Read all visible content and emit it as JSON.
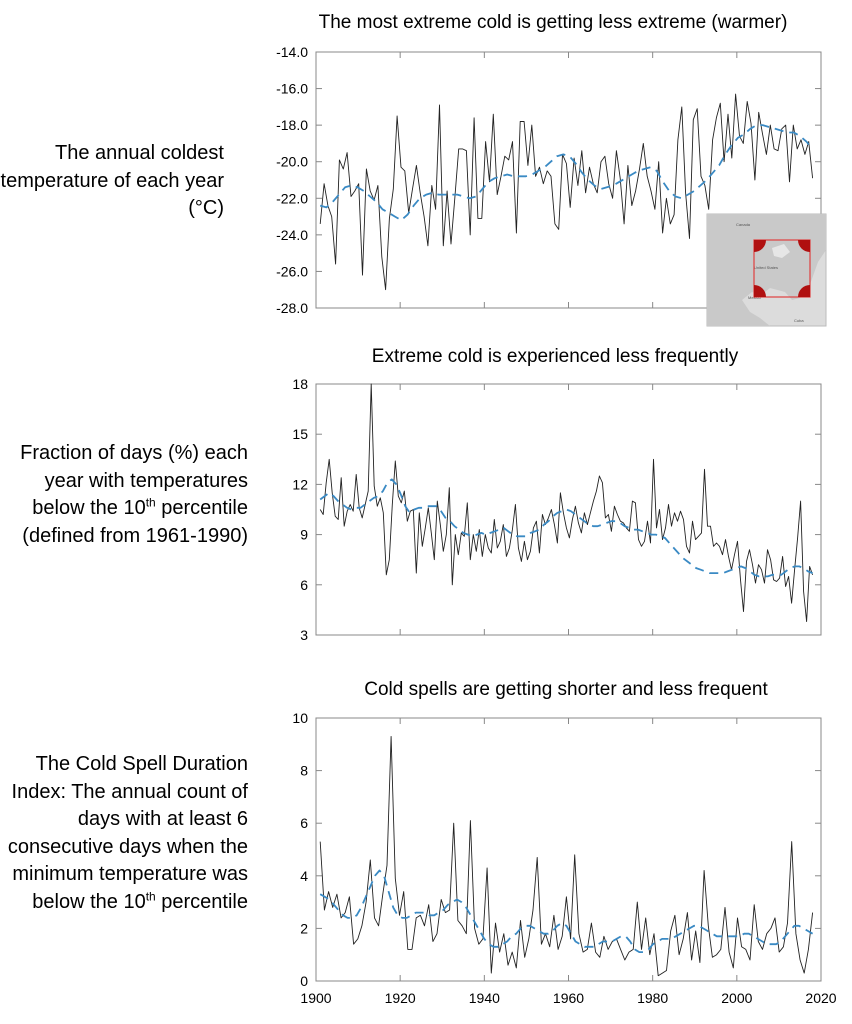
{
  "chart_data": [
    {
      "type": "line",
      "title": "The most extreme cold is getting less extreme (warmer)",
      "ylabel": "The annual coldest temperature of each year (°C)",
      "yticks": [
        "-14.0",
        "-16.0",
        "-18.0",
        "-20.0",
        "-22.0",
        "-24.0",
        "-26.0",
        "-28.0"
      ],
      "ylim": [
        -28,
        -14
      ],
      "xlim": [
        1900,
        2020
      ],
      "grid": false,
      "series": [
        {
          "style": "black-solid",
          "values": [
            -23.4,
            -21.2,
            -22.4,
            -23.0,
            -25.6,
            -19.9,
            -20.4,
            -19.5,
            -21.9,
            -21.6,
            -21.2,
            -26.2,
            -20.4,
            -21.6,
            -22.1,
            -21.3,
            -25.2,
            -27.0,
            -23.1,
            -21.5,
            -17.5,
            -20.3,
            -20.5,
            -22.8,
            -21.5,
            -20.2,
            -21.7,
            -23.0,
            -24.6,
            -21.3,
            -22.6,
            -16.9,
            -24.6,
            -21.6,
            -24.5,
            -22.0,
            -19.3,
            -19.3,
            -19.4,
            -24.0,
            -17.6,
            -23.1,
            -23.1,
            -18.9,
            -21.1,
            -17.4,
            -21.8,
            -20.8,
            -19.7,
            -19.9,
            -18.9,
            -23.9,
            -17.8,
            -17.8,
            -20.2,
            -18.0,
            -20.8,
            -20.3,
            -21.2,
            -20.5,
            -20.8,
            -23.4,
            -23.7,
            -19.6,
            -20.1,
            -22.5,
            -19.8,
            -21.3,
            -19.4,
            -21.7,
            -20.3,
            -21.2,
            -21.7,
            -20.0,
            -19.7,
            -21.2,
            -22.0,
            -19.4,
            -20.9,
            -23.4,
            -20.2,
            -22.4,
            -21.6,
            -20.4,
            -19.0,
            -20.8,
            -21.6,
            -22.6,
            -20.0,
            -23.9,
            -22.0,
            -23.4,
            -22.9,
            -18.8,
            -17.0,
            -21.7,
            -24.2,
            -17.7,
            -17.1,
            -20.8,
            -21.3,
            -22.6,
            -18.8,
            -17.6,
            -16.8,
            -20.0,
            -17.4,
            -19.8,
            -16.3,
            -18.6,
            -19.0,
            -16.7,
            -17.9,
            -21.0,
            -17.3,
            -18.5,
            -19.6,
            -18.0,
            -19.3,
            -19.4,
            -18.2,
            -18.0,
            -21.1,
            -18.0,
            -19.3,
            -18.8,
            -19.6,
            -18.9,
            -20.9
          ]
        },
        {
          "style": "blue-dashed",
          "values": [
            -22.4,
            -22.5,
            -22.2,
            -21.8,
            -21.4,
            -21.3,
            -21.4,
            -21.6,
            -21.9,
            -22.2,
            -22.6,
            -22.8,
            -23.0,
            -23.2,
            -22.9,
            -22.4,
            -22.0,
            -21.8,
            -21.7,
            -21.8,
            -21.8,
            -21.8,
            -21.8,
            -21.9,
            -22.0,
            -21.9,
            -21.5,
            -21.1,
            -20.9,
            -20.8,
            -20.7,
            -20.8,
            -20.8,
            -20.8,
            -20.7,
            -20.5,
            -20.3,
            -20.0,
            -19.7,
            -19.6,
            -19.7,
            -20.1,
            -20.6,
            -21.0,
            -21.3,
            -21.5,
            -21.4,
            -21.3,
            -21.1,
            -20.9,
            -20.7,
            -20.5,
            -20.4,
            -20.3,
            -20.5,
            -21.1,
            -21.6,
            -21.9,
            -22.0,
            -21.8,
            -21.6,
            -21.3,
            -21.0,
            -20.6,
            -20.2,
            -19.6,
            -19.1,
            -18.7,
            -18.5,
            -18.2,
            -18.0,
            -18.0,
            -18.1,
            -18.2,
            -18.3,
            -18.4,
            -18.4,
            -18.6,
            -18.9,
            -19.3
          ]
        }
      ]
    },
    {
      "type": "line",
      "title": "Extreme cold is experienced less frequently",
      "ylabel": "Fraction of days (%) each year with temperatures below the 10th percentile (defined from 1961-1990)",
      "yticks": [
        "18",
        "15",
        "12",
        "9",
        "6",
        "3"
      ],
      "ylim": [
        3,
        18
      ],
      "xlim": [
        1900,
        2020
      ],
      "grid": false,
      "series": [
        {
          "style": "black-solid",
          "values": [
            10.5,
            10.2,
            12.1,
            13.5,
            11.5,
            10.1,
            9.9,
            12.4,
            9.5,
            10.4,
            10.8,
            10.4,
            12.6,
            10.6,
            10.0,
            10.8,
            11.6,
            18.0,
            11.9,
            10.7,
            11.2,
            10.3,
            6.6,
            7.5,
            10.8,
            13.4,
            11.3,
            10.9,
            11.6,
            9.8,
            10.4,
            10.5,
            6.7,
            10.3,
            8.3,
            9.4,
            10.6,
            9.1,
            7.5,
            11.0,
            9.6,
            8.0,
            9.0,
            11.8,
            6.0,
            9.0,
            7.8,
            9.1,
            8.9,
            10.9,
            7.5,
            9.0,
            8.0,
            9.3,
            7.7,
            9.0,
            8.2,
            7.9,
            9.9,
            8.2,
            8.6,
            9.6,
            7.7,
            8.2,
            9.3,
            10.8,
            8.2,
            7.4,
            8.6,
            7.5,
            8.0,
            9.4,
            9.8,
            7.9,
            10.2,
            9.6,
            10.0,
            10.5,
            9.6,
            8.5,
            11.5,
            10.3,
            9.4,
            8.8,
            9.9,
            10.7,
            9.7,
            9.1,
            10.3,
            9.6,
            10.3,
            11.0,
            11.6,
            12.5,
            12.1,
            10.0,
            10.2,
            9.2,
            10.7,
            10.2,
            9.8,
            9.7,
            9.4,
            9.2,
            11.0,
            10.9,
            8.7,
            8.3,
            8.6,
            9.8,
            8.5,
            13.5,
            9.4,
            10.5,
            8.7,
            9.4,
            10.8,
            9.5,
            10.3,
            9.8,
            10.4,
            9.9,
            8.3,
            7.9,
            9.8,
            8.7,
            8.9,
            9.1,
            12.9,
            9.5,
            9.5,
            8.3,
            8.5,
            8.3,
            7.8,
            8.7,
            7.7,
            6.9,
            7.8,
            8.6,
            6.3,
            4.4,
            7.4,
            8.1,
            7.2,
            6.1,
            7.2,
            6.9,
            6.1,
            8.1,
            7.5,
            6.3,
            6.2,
            6.4,
            7.7,
            5.9,
            6.5,
            4.9,
            6.9,
            8.8,
            11.0,
            5.6,
            3.8,
            7.1,
            6.6
          ]
        },
        {
          "style": "blue-dashed",
          "values": [
            11.1,
            11.3,
            11.5,
            11.3,
            11.0,
            10.8,
            10.6,
            10.5,
            10.6,
            10.6,
            10.8,
            11.0,
            11.2,
            11.3,
            11.6,
            12.1,
            12.3,
            12.0,
            11.4,
            10.7,
            10.3,
            10.5,
            10.6,
            10.6,
            10.7,
            10.7,
            10.7,
            10.4,
            10.0,
            9.8,
            9.5,
            9.3,
            9.1,
            9.0,
            8.9,
            9.0,
            9.1,
            9.0,
            9.1,
            9.2,
            9.3,
            9.4,
            9.2,
            9.0,
            8.9,
            8.9,
            8.9,
            9.1,
            9.2,
            9.3,
            9.6,
            9.8,
            10.1,
            10.3,
            10.4,
            10.5,
            10.4,
            10.2,
            10.0,
            9.8,
            9.6,
            9.5,
            9.5,
            9.6,
            9.7,
            9.8,
            9.8,
            9.7,
            9.5,
            9.4,
            9.3,
            9.3,
            9.2,
            9.1,
            9.0,
            9.0,
            8.9,
            8.8,
            8.5,
            8.2,
            7.9,
            7.6,
            7.4,
            7.2,
            7.0,
            6.9,
            6.8,
            6.7,
            6.7,
            6.7,
            6.7,
            6.8,
            6.9,
            7.0,
            7.1,
            7.0,
            6.8,
            6.6,
            6.5,
            6.5,
            6.5,
            6.6,
            6.6,
            6.6,
            6.8,
            7.0,
            7.1,
            7.1,
            7.0,
            6.8,
            6.7
          ]
        }
      ]
    },
    {
      "type": "line",
      "title": "Cold spells are getting shorter and less frequent",
      "ylabel": "The Cold Spell Duration Index: The annual count of days with at least 6 consecutive days when the minimum temperature was below the 10th percentile",
      "yticks": [
        "10",
        "8",
        "6",
        "4",
        "2",
        "0"
      ],
      "xticks": [
        "1900",
        "1920",
        "1940",
        "1960",
        "1980",
        "2000",
        "2020"
      ],
      "ylim": [
        0,
        10
      ],
      "xlim": [
        1900,
        2020
      ],
      "grid": false,
      "series": [
        {
          "style": "black-solid",
          "values": [
            5.3,
            2.7,
            3.4,
            2.8,
            3.3,
            2.4,
            2.6,
            3.2,
            1.4,
            1.6,
            2.1,
            3.0,
            4.6,
            2.4,
            2.1,
            3.3,
            4.4,
            9.3,
            3.9,
            2.5,
            3.4,
            1.2,
            1.2,
            2.4,
            2.5,
            2.1,
            2.9,
            1.5,
            1.8,
            3.1,
            2.6,
            2.7,
            6.0,
            2.3,
            2.1,
            1.8,
            6.1,
            2.0,
            1.4,
            1.6,
            4.3,
            0.3,
            2.2,
            1.1,
            1.8,
            0.6,
            1.1,
            0.5,
            2.3,
            0.9,
            1.6,
            2.7,
            4.7,
            1.4,
            1.8,
            1.3,
            2.5,
            1.2,
            1.7,
            3.2,
            1.6,
            4.8,
            1.8,
            1.1,
            1.2,
            2.2,
            1.1,
            0.9,
            1.7,
            1.2,
            1.5,
            1.6,
            1.2,
            0.8,
            1.1,
            1.2,
            3.0,
            1.2,
            2.4,
            1.0,
            1.8,
            0.2,
            0.3,
            0.4,
            1.9,
            2.5,
            1.0,
            1.6,
            2.6,
            0.8,
            1.9,
            0.7,
            4.2,
            2.1,
            0.9,
            1.0,
            1.2,
            2.8,
            1.1,
            0.5,
            2.4,
            1.3,
            1.2,
            0.8,
            2.9,
            1.5,
            1.2,
            1.8,
            2.0,
            2.4,
            1.1,
            1.3,
            2.2,
            5.3,
            1.8,
            0.8,
            0.3,
            1.2,
            2.6
          ]
        },
        {
          "style": "blue-dashed",
          "values": [
            3.3,
            3.2,
            3.1,
            2.9,
            2.7,
            2.5,
            2.4,
            2.4,
            2.5,
            2.8,
            3.2,
            3.6,
            4.0,
            4.2,
            4.0,
            3.4,
            2.8,
            2.5,
            2.4,
            2.4,
            2.5,
            2.6,
            2.6,
            2.6,
            2.5,
            2.5,
            2.6,
            2.7,
            2.9,
            3.0,
            3.1,
            3.0,
            2.8,
            2.5,
            2.2,
            1.9,
            1.6,
            1.4,
            1.3,
            1.3,
            1.4,
            1.5,
            1.7,
            1.8,
            2.0,
            2.1,
            2.1,
            2.0,
            1.9,
            1.8,
            1.8,
            1.9,
            2.1,
            2.2,
            2.1,
            1.8,
            1.5,
            1.4,
            1.3,
            1.3,
            1.3,
            1.4,
            1.5,
            1.5,
            1.5,
            1.6,
            1.7,
            1.7,
            1.5,
            1.2,
            1.1,
            1.1,
            1.2,
            1.4,
            1.5,
            1.6,
            1.6,
            1.6,
            1.7,
            1.8,
            1.9,
            2.0,
            2.1,
            2.1,
            2.0,
            1.9,
            1.8,
            1.7,
            1.7,
            1.7,
            1.7,
            1.7,
            1.7,
            1.8,
            1.8,
            1.7,
            1.6,
            1.5,
            1.4,
            1.4,
            1.4,
            1.5,
            1.7,
            1.9,
            2.1,
            2.1,
            2.0,
            1.9,
            1.8
          ]
        }
      ]
    }
  ],
  "inset_map": {
    "labels": [
      "Canada",
      "United States",
      "Mexico",
      "Cuba"
    ],
    "colors": {
      "land": "#c9c9c9",
      "water": "#dcdcdc",
      "box": "#e04040",
      "corner": "#b01010"
    }
  },
  "colors": {
    "line": "#222222",
    "trend": "#3a8ac4",
    "axis": "#888888"
  }
}
